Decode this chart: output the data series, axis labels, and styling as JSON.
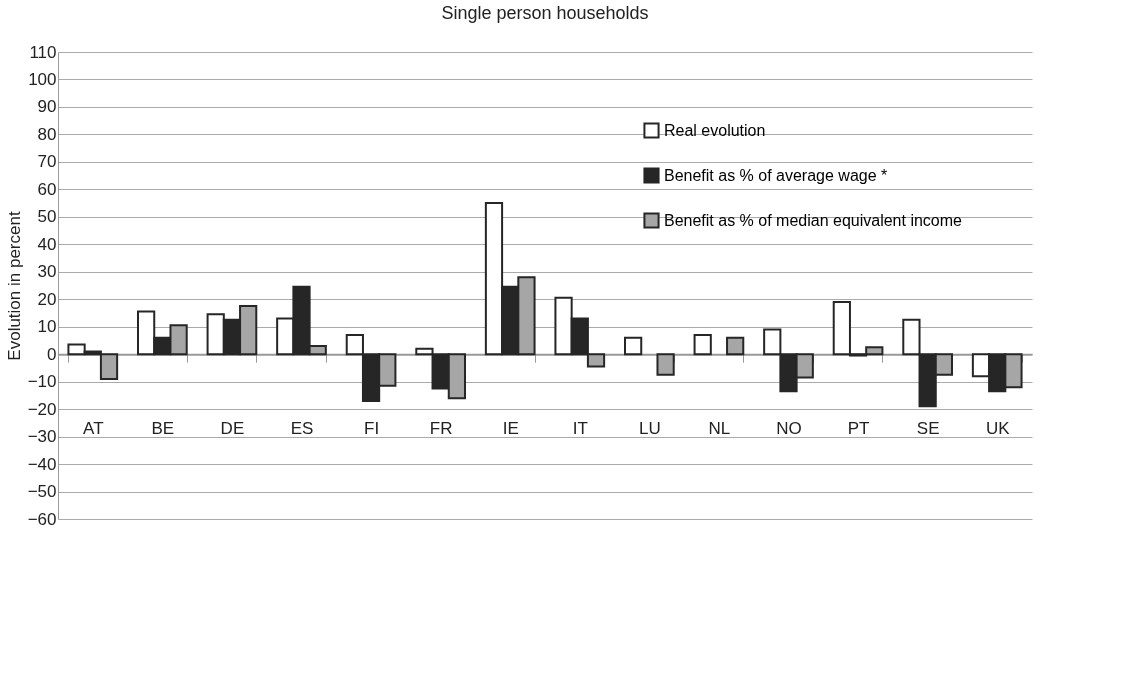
{
  "chart_data": {
    "type": "bar",
    "title": "Single person households",
    "ylabel": "Evolution in percent",
    "categories": [
      "AT",
      "BE",
      "DE",
      "ES",
      "FI",
      "FR",
      "IE",
      "IT",
      "LU",
      "NL",
      "NO",
      "PT",
      "SE",
      "UK"
    ],
    "series": [
      {
        "name": "Real evolution",
        "color": "#ffffff",
        "values": [
          3.5,
          15.5,
          14.5,
          13,
          7,
          2,
          55,
          20.5,
          6,
          7,
          9,
          19,
          12.5,
          -8
        ]
      },
      {
        "name": "Benefit as % of average wage *",
        "color": "#262626",
        "values": [
          1,
          6,
          12.5,
          24.5,
          -17,
          -12.5,
          24.5,
          13,
          null,
          null,
          -13.5,
          -0.5,
          -19,
          -13.5
        ]
      },
      {
        "name": "Benefit as % of median equivalent income",
        "color": "#a6a6a6",
        "values": [
          -9,
          10.5,
          17.5,
          3,
          -11.5,
          -16,
          28,
          -4.5,
          -7.5,
          6,
          -8.5,
          2.5,
          -7.5,
          -12
        ]
      }
    ],
    "ylim": [
      -60,
      110
    ],
    "yticks": [
      -60,
      -50,
      -40,
      -30,
      -20,
      -10,
      0,
      10,
      20,
      30,
      40,
      50,
      60,
      70,
      80,
      90,
      100,
      110
    ],
    "grid": "y",
    "legend": "top right"
  }
}
